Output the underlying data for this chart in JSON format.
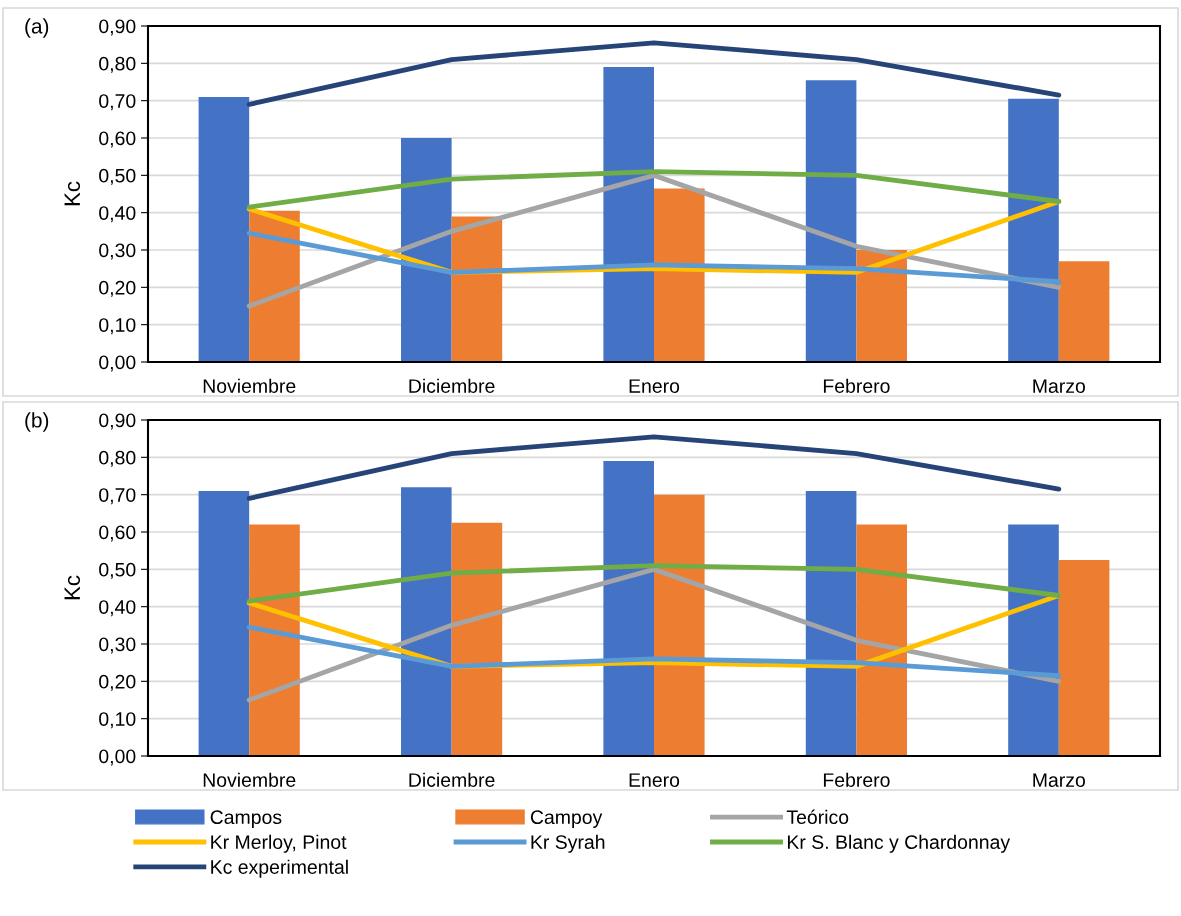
{
  "chart_data": [
    {
      "type": "bar",
      "title": "(a)",
      "ylabel": "Kc",
      "categories": [
        "Noviembre",
        "Diciembre",
        "Enero",
        "Febrero",
        "Marzo"
      ],
      "ylim": [
        0,
        0.9
      ],
      "yticks": [
        {
          "value": 0,
          "label": "0,00"
        },
        {
          "value": 0.1,
          "label": "0,10"
        },
        {
          "value": 0.2,
          "label": "0,20"
        },
        {
          "value": 0.3,
          "label": "0,30"
        },
        {
          "value": 0.4,
          "label": "0,40"
        },
        {
          "value": 0.5,
          "label": "0,50"
        },
        {
          "value": 0.6,
          "label": "0,60"
        },
        {
          "value": 0.7,
          "label": "0,70"
        },
        {
          "value": 0.8,
          "label": "0,80"
        },
        {
          "value": 0.9,
          "label": "0,90"
        }
      ],
      "grid": "y",
      "legend": "bottom",
      "series": [
        {
          "name": "Campos",
          "color": "#4472c4",
          "values": [
            0.71,
            0.6,
            0.79,
            0.755,
            0.705
          ]
        },
        {
          "name": "Campoy",
          "color": "#ed7d31",
          "values": [
            0.405,
            0.39,
            0.465,
            0.3,
            0.27
          ]
        },
        {
          "name": "Teórico",
          "type": "line",
          "color": "#a5a5a5",
          "values": [
            0.15,
            0.35,
            0.5,
            0.31,
            0.2
          ]
        },
        {
          "name": "Kr Merloy, Pinot",
          "type": "line",
          "color": "#ffc000",
          "values": [
            0.41,
            0.24,
            0.25,
            0.24,
            0.43
          ]
        },
        {
          "name": "Kr Syrah",
          "type": "line",
          "color": "#5b9bd5",
          "values": [
            0.345,
            0.24,
            0.26,
            0.25,
            0.215
          ]
        },
        {
          "name": "Kr S. Blanc y Chardonnay",
          "type": "line",
          "color": "#70ad47",
          "values": [
            0.415,
            0.49,
            0.51,
            0.5,
            0.43
          ]
        },
        {
          "name": "Kc experimental",
          "type": "line",
          "color": "#264478",
          "values": [
            0.69,
            0.81,
            0.855,
            0.81,
            0.715
          ]
        }
      ]
    },
    {
      "type": "bar",
      "title": "(b)",
      "ylabel": "Kc",
      "categories": [
        "Noviembre",
        "Diciembre",
        "Enero",
        "Febrero",
        "Marzo"
      ],
      "ylim": [
        0,
        0.9
      ],
      "yticks": [
        {
          "value": 0,
          "label": "0,00"
        },
        {
          "value": 0.1,
          "label": "0,10"
        },
        {
          "value": 0.2,
          "label": "0,20"
        },
        {
          "value": 0.3,
          "label": "0,30"
        },
        {
          "value": 0.4,
          "label": "0,40"
        },
        {
          "value": 0.5,
          "label": "0,50"
        },
        {
          "value": 0.6,
          "label": "0,60"
        },
        {
          "value": 0.7,
          "label": "0,70"
        },
        {
          "value": 0.8,
          "label": "0,80"
        },
        {
          "value": 0.9,
          "label": "0,90"
        }
      ],
      "grid": "y",
      "legend": "bottom",
      "series": [
        {
          "name": "Campos",
          "color": "#4472c4",
          "values": [
            0.71,
            0.72,
            0.79,
            0.71,
            0.62
          ]
        },
        {
          "name": "Campoy",
          "color": "#ed7d31",
          "values": [
            0.62,
            0.625,
            0.7,
            0.62,
            0.525
          ]
        },
        {
          "name": "Teórico",
          "type": "line",
          "color": "#a5a5a5",
          "values": [
            0.15,
            0.35,
            0.5,
            0.31,
            0.2
          ]
        },
        {
          "name": "Kr Merloy, Pinot",
          "type": "line",
          "color": "#ffc000",
          "values": [
            0.41,
            0.24,
            0.25,
            0.24,
            0.43
          ]
        },
        {
          "name": "Kr Syrah",
          "type": "line",
          "color": "#5b9bd5",
          "values": [
            0.345,
            0.24,
            0.26,
            0.25,
            0.215
          ]
        },
        {
          "name": "Kr S. Blanc y Chardonnay",
          "type": "line",
          "color": "#70ad47",
          "values": [
            0.415,
            0.49,
            0.51,
            0.5,
            0.43
          ]
        },
        {
          "name": "Kc experimental",
          "type": "line",
          "color": "#264478",
          "values": [
            0.69,
            0.81,
            0.855,
            0.81,
            0.715
          ]
        }
      ]
    }
  ]
}
